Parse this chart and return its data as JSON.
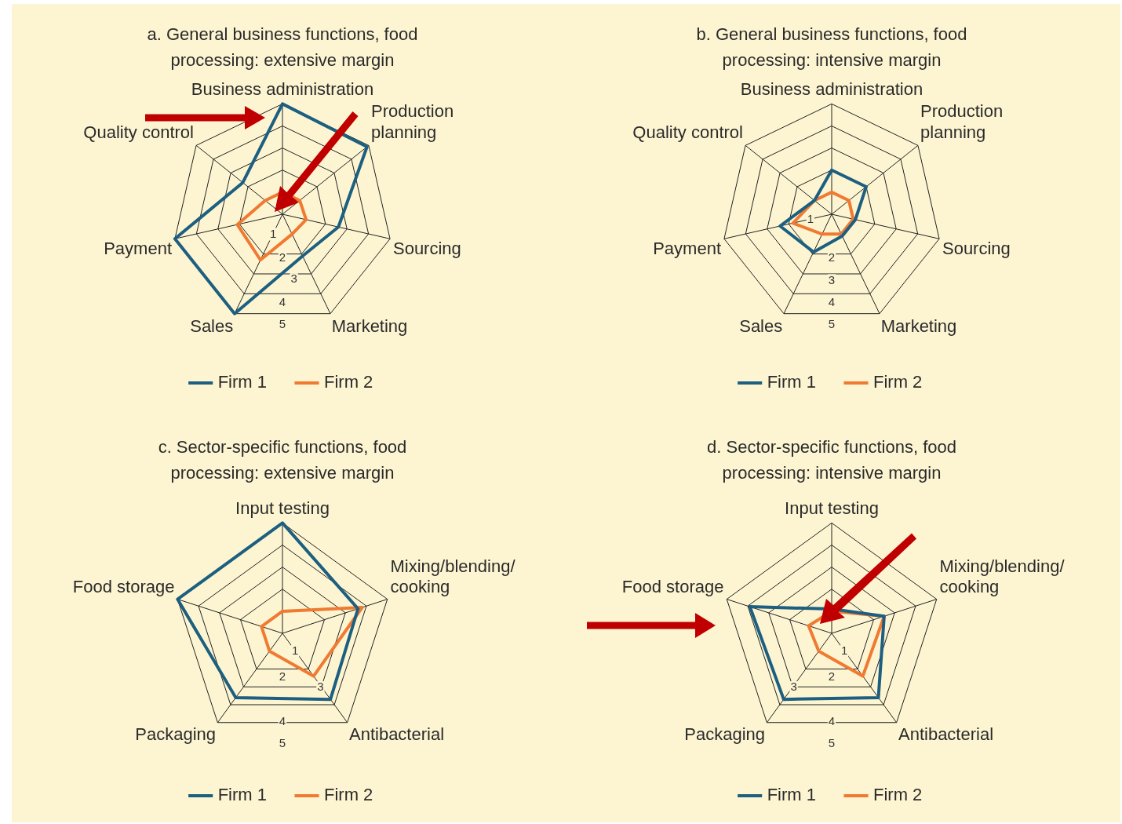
{
  "chart_data": [
    {
      "type": "radar",
      "title": "a. General business functions, food processing: extensive margin",
      "categories": [
        "Business administration",
        "Production planning",
        "Sourcing",
        "Marketing",
        "Sales",
        "Payment",
        "Quality control"
      ],
      "series": [
        {
          "name": "Firm 1",
          "color": "#1d5f80",
          "values": [
            5,
            4.9,
            2.6,
            2.1,
            5,
            5,
            2.3
          ]
        },
        {
          "name": "Firm 2",
          "color": "#f07a32",
          "values": [
            1,
            1,
            1.1,
            1,
            2.3,
            2.1,
            1
          ]
        }
      ],
      "ylim": [
        0,
        5
      ],
      "yticks": [
        1,
        2,
        3,
        4,
        5
      ],
      "grid": true,
      "legend": "bottom",
      "marker": "none"
    },
    {
      "type": "radar",
      "title": "b. General business functions, food processing: intensive margin",
      "categories": [
        "Business administration",
        "Production planning",
        "Sourcing",
        "Marketing",
        "Sales",
        "Payment",
        "Quality control"
      ],
      "series": [
        {
          "name": "Firm 1",
          "color": "#1d5f80",
          "values": [
            2,
            2,
            1.1,
            1.1,
            1.9,
            2.4,
            1
          ]
        },
        {
          "name": "Firm 2",
          "color": "#f07a32",
          "values": [
            1,
            1,
            1,
            1,
            1,
            1.8,
            1
          ]
        }
      ],
      "ylim": [
        0,
        5
      ],
      "yticks": [
        1,
        2,
        3,
        4,
        5
      ],
      "grid": true,
      "legend": "bottom",
      "marker": "none"
    },
    {
      "type": "radar",
      "title": "c. Sector-specific functions, food processing: extensive margin",
      "categories": [
        "Input testing",
        "Mixing/blending/cooking",
        "Antibacterial",
        "Packaging",
        "Food storage"
      ],
      "series": [
        {
          "name": "Firm 1",
          "color": "#1d5f80",
          "values": [
            5,
            3.6,
            3.7,
            3.6,
            5
          ]
        },
        {
          "name": "Firm 2",
          "color": "#f07a32",
          "values": [
            1,
            3.8,
            2.4,
            1,
            1
          ]
        }
      ],
      "ylim": [
        0,
        5
      ],
      "yticks": [
        1,
        2,
        3,
        4,
        5
      ],
      "grid": true,
      "legend": "bottom",
      "marker": "none"
    },
    {
      "type": "radar",
      "title": "d. Sector-specific functions, food processing: intensive margin",
      "categories": [
        "Input testing",
        "Mixing/blending/cooking",
        "Antibacterial",
        "Packaging",
        "Food storage"
      ],
      "series": [
        {
          "name": "Firm 1",
          "color": "#1d5f80",
          "values": [
            1.1,
            2.5,
            3.6,
            3.7,
            3.9
          ]
        },
        {
          "name": "Firm 2",
          "color": "#f07a32",
          "values": [
            1,
            2.5,
            2.4,
            1,
            1.1
          ]
        }
      ],
      "ylim": [
        0,
        5
      ],
      "yticks": [
        1,
        2,
        3,
        4,
        5
      ],
      "grid": true,
      "legend": "bottom",
      "marker": "none"
    }
  ]
}
